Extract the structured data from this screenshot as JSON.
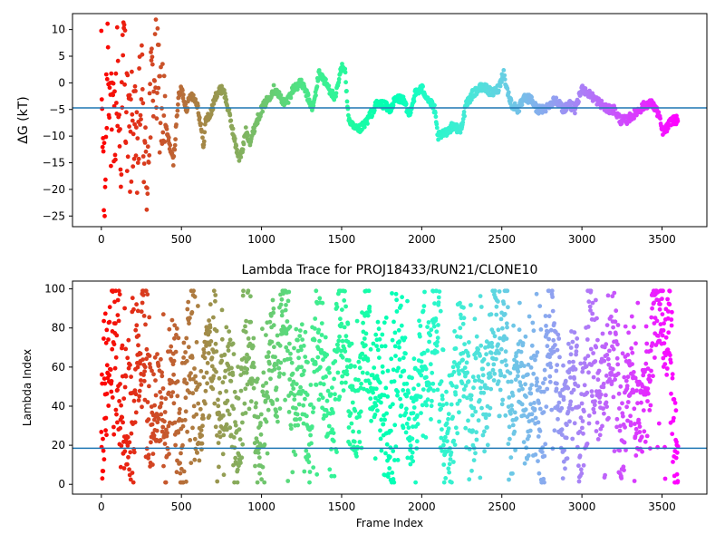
{
  "chart_data": [
    {
      "type": "scatter",
      "title": "",
      "xlabel": "",
      "ylabel": "ΔG (kT)",
      "xlim": [
        -180,
        3780
      ],
      "ylim": [
        -27,
        13
      ],
      "xticks": [
        0,
        500,
        1000,
        1500,
        2000,
        2500,
        3000,
        3500
      ],
      "xtick_labels": [
        "0",
        "500",
        "1000",
        "1500",
        "2000",
        "2500",
        "3000",
        "3500"
      ],
      "yticks": [
        10,
        5,
        0,
        -5,
        -10,
        -15,
        -20,
        -25
      ],
      "ytick_labels": [
        "10",
        "5",
        "0",
        "−5",
        "−10",
        "−15",
        "−20",
        "−25"
      ],
      "hline": -4.7,
      "colormap": "rainbow",
      "x_extent": [
        0,
        3600
      ],
      "grid": false,
      "series": [
        {
          "x": [
            0,
            20,
            40,
            60,
            80,
            100,
            120,
            140,
            160,
            180,
            200,
            220,
            250,
            280,
            300,
            330,
            360,
            400,
            450,
            480,
            500,
            530,
            560,
            600,
            640,
            650,
            680,
            720,
            760,
            800,
            840,
            860,
            880,
            900,
            930,
            960,
            1000,
            1040,
            1080,
            1100,
            1150,
            1200,
            1250,
            1280,
            1320,
            1360,
            1380,
            1420,
            1460,
            1500,
            1520,
            1540,
            1560,
            1600,
            1640,
            1680,
            1720,
            1760,
            1800,
            1840,
            1880,
            1920,
            1960,
            2000,
            2040,
            2080,
            2100,
            2120,
            2160,
            2200,
            2240,
            2280,
            2320,
            2360,
            2400,
            2440,
            2480,
            2510,
            2530,
            2560,
            2600,
            2640,
            2680,
            2720,
            2760,
            2800,
            2840,
            2880,
            2920,
            2960,
            3000,
            3040,
            3080,
            3120,
            3160,
            3200,
            3240,
            3280,
            3320,
            3360,
            3400,
            3440,
            3480,
            3500,
            3520,
            3540,
            3560,
            3580,
            3600
          ],
          "y": [
            0,
            -24,
            10,
            -8,
            -11,
            2,
            -14,
            8,
            -7,
            -12,
            -5,
            -16,
            0,
            -20,
            -6,
            3,
            -2,
            -8,
            -15,
            -3,
            -1,
            -5,
            -2,
            -4,
            -12,
            -7,
            -6,
            -2,
            -1,
            -6,
            -12,
            -14,
            -13,
            -9,
            -11,
            -8,
            -5,
            -3,
            -1,
            -2,
            -4,
            -1,
            0,
            -2,
            -5,
            2,
            1,
            -1,
            -3,
            3,
            3,
            -6,
            -8,
            -9,
            -8,
            -6,
            -4,
            -4,
            -5,
            -3,
            -3,
            -6,
            -2,
            -1,
            -3,
            -5,
            -10,
            -10,
            -9,
            -8,
            -9,
            -4,
            -2,
            -1,
            -1,
            -2,
            -1,
            2,
            -1,
            -4,
            -5,
            -3,
            -3,
            -5,
            -5,
            -4,
            -3,
            -5,
            -4,
            -5,
            -1,
            -2,
            -3,
            -4,
            -5,
            -5,
            -7,
            -7,
            -6,
            -5,
            -4,
            -4,
            -6,
            -9,
            -9,
            -8,
            -7,
            -7,
            -7
          ]
        }
      ]
    },
    {
      "type": "scatter",
      "title": "Lambda Trace for PROJ18433/RUN21/CLONE10",
      "xlabel": "Frame Index",
      "ylabel": "Lambda Index",
      "xlim": [
        -180,
        3780
      ],
      "ylim": [
        -5,
        104
      ],
      "xticks": [
        0,
        500,
        1000,
        1500,
        2000,
        2500,
        3000,
        3500
      ],
      "xtick_labels": [
        "0",
        "500",
        "1000",
        "1500",
        "2000",
        "2500",
        "3000",
        "3500"
      ],
      "yticks": [
        0,
        20,
        40,
        60,
        80,
        100
      ],
      "ytick_labels": [
        "0",
        "20",
        "40",
        "60",
        "80",
        "100"
      ],
      "hline": 18.5,
      "colormap": "rainbow",
      "x_extent": [
        0,
        3600
      ],
      "grid": false,
      "series": [
        {
          "x": [
            0,
            30,
            60,
            90,
            120,
            150,
            180,
            210,
            240,
            270,
            300,
            350,
            400,
            450,
            500,
            550,
            600,
            650,
            700,
            750,
            800,
            850,
            900,
            950,
            1000,
            1050,
            1100,
            1150,
            1200,
            1250,
            1300,
            1350,
            1400,
            1450,
            1500,
            1520,
            1550,
            1600,
            1650,
            1700,
            1750,
            1800,
            1850,
            1900,
            1950,
            2000,
            2050,
            2100,
            2150,
            2200,
            2250,
            2300,
            2350,
            2400,
            2450,
            2500,
            2520,
            2550,
            2600,
            2650,
            2700,
            2750,
            2800,
            2850,
            2900,
            2950,
            3000,
            3050,
            3100,
            3150,
            3200,
            3250,
            3300,
            3350,
            3400,
            3450,
            3500,
            3520,
            3550,
            3600
          ],
          "y": [
            5,
            85,
            40,
            98,
            20,
            60,
            10,
            75,
            45,
            90,
            30,
            55,
            15,
            70,
            5,
            95,
            35,
            50,
            80,
            25,
            65,
            10,
            88,
            40,
            20,
            72,
            55,
            95,
            30,
            60,
            8,
            85,
            45,
            25,
            98,
            70,
            50,
            15,
            90,
            35,
            60,
            5,
            80,
            45,
            25,
            70,
            55,
            95,
            10,
            40,
            85,
            20,
            65,
            35,
            90,
            50,
            98,
            15,
            75,
            30,
            60,
            5,
            85,
            45,
            25,
            70,
            10,
            95,
            40,
            55,
            80,
            20,
            65,
            35,
            50,
            90,
            95,
            85,
            75,
            2
          ]
        }
      ]
    }
  ]
}
